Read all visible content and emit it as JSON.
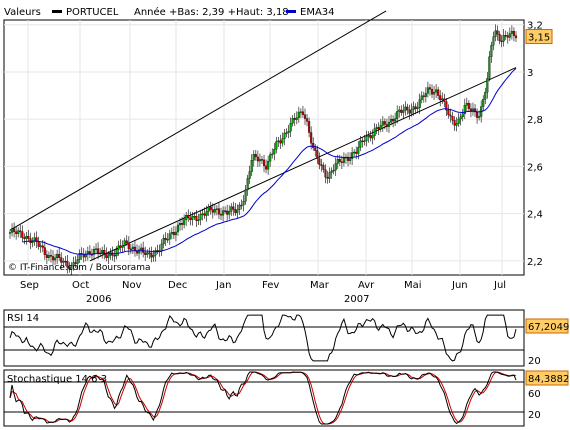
{
  "legend": {
    "items": [
      {
        "label": "Valeurs",
        "swatch": ""
      },
      {
        "label": "PORTUCEL",
        "swatch": "#000000"
      },
      {
        "label": "Année +Bas: 2,39 +Haut: 3,18",
        "swatch": ""
      },
      {
        "label": "EMA34",
        "swatch": "#0000cc"
      }
    ]
  },
  "watermark": "© IT-Finance.com / Boursorama",
  "chart_data": [
    {
      "type": "candlestick",
      "title": "",
      "series": [
        {
          "name": "PORTUCEL",
          "color": "#000000"
        },
        {
          "name": "EMA34",
          "color": "#0000cc"
        }
      ],
      "x_ticks": [
        "Sep",
        "Oct",
        "Nov",
        "Dec",
        "Jan",
        "Fev",
        "Mar",
        "Avr",
        "Mai",
        "Jun",
        "Jul"
      ],
      "x_year_labels": [
        "2006",
        "2007"
      ],
      "y_ticks": [
        "2,2",
        "2,4",
        "2,6",
        "2,8",
        "3",
        "3,2"
      ],
      "ylim": [
        2.14,
        3.22
      ],
      "last_value": "3,15",
      "last_value_num": 3.15,
      "trend_channel": {
        "upper": [
          [
            0,
            2.33
          ],
          [
            208,
            3.25
          ]
        ],
        "lower": [
          [
            0,
            2.05
          ],
          [
            248,
            3.01
          ]
        ]
      },
      "candle_colors": {
        "up": "#00a000",
        "down": "#cc0000"
      },
      "grid": true
    },
    {
      "type": "line",
      "title": "RSI 14",
      "last_value": "67,2049",
      "last_value_num": 67.2049,
      "y_ticks": [
        "80",
        "20"
      ],
      "ylim": [
        0,
        100
      ],
      "ref_lines": [
        70,
        30
      ],
      "series": [
        {
          "name": "RSI 14",
          "color": "#000000"
        }
      ]
    },
    {
      "type": "line",
      "title": "Stochastique 14 6 3",
      "last_value": "84,3882",
      "last_value_num": 84.3882,
      "y_ticks": [
        "80",
        "60",
        "20"
      ],
      "ylim": [
        0,
        100
      ],
      "ref_lines": [
        80,
        20
      ],
      "series": [
        {
          "name": "%K",
          "color": "#000000"
        },
        {
          "name": "%D",
          "color": "#cc0000"
        }
      ]
    }
  ]
}
